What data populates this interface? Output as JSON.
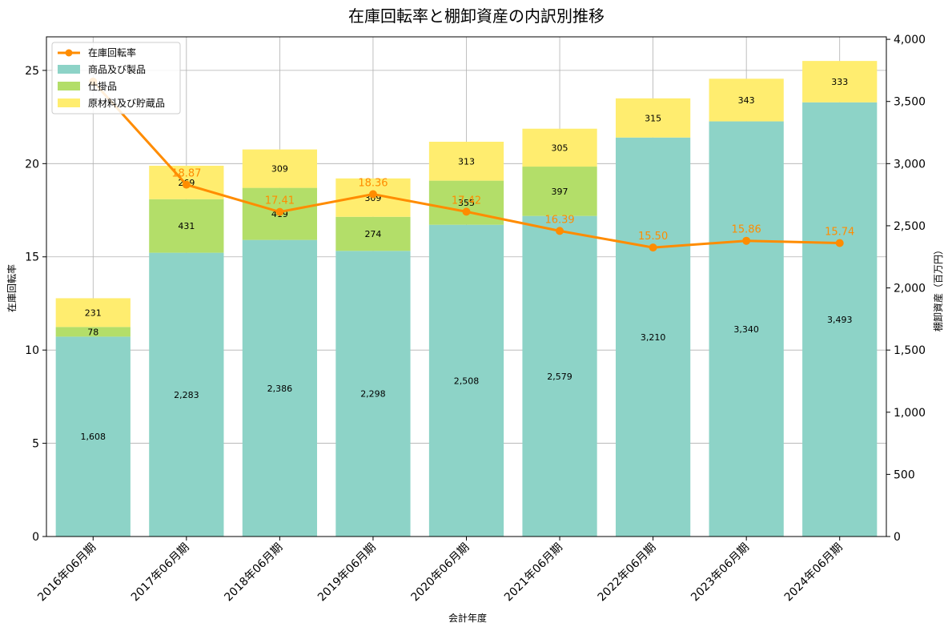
{
  "chart_data": {
    "type": "bar",
    "title": "在庫回転率と棚卸資産の内訳別推移",
    "xlabel": "会計年度",
    "ylabel_left": "在庫回転率",
    "ylabel_right": "棚卸資産（百万円）",
    "categories": [
      "2016年06月期",
      "2017年06月期",
      "2018年06月期",
      "2019年06月期",
      "2020年06月期",
      "2021年06月期",
      "2022年06月期",
      "2023年06月期",
      "2024年06月期"
    ],
    "stacked": true,
    "series": [
      {
        "name": "商品及び製品",
        "axis": "right",
        "color": "#8dd3c7",
        "values": [
          1608,
          2283,
          2386,
          2298,
          2508,
          2579,
          3210,
          3340,
          3493
        ],
        "labels": [
          "1,608",
          "2,283",
          "2,386",
          "2,298",
          "2,508",
          "2,579",
          "3,210",
          "3,340",
          "3,493"
        ]
      },
      {
        "name": "仕掛品",
        "axis": "right",
        "color": "#b3de69",
        "values": [
          78,
          431,
          419,
          274,
          355,
          397,
          0,
          0,
          0
        ],
        "labels": [
          "78",
          "431",
          "419",
          "274",
          "355",
          "397",
          "",
          "",
          ""
        ]
      },
      {
        "name": "原材料及び貯蔵品",
        "axis": "right",
        "color": "#ffed6f",
        "values": [
          231,
          269,
          309,
          309,
          313,
          305,
          315,
          343,
          333
        ],
        "labels": [
          "231",
          "269",
          "309",
          "309",
          "313",
          "305",
          "315",
          "343",
          "333"
        ]
      }
    ],
    "line": {
      "name": "在庫回転率",
      "axis": "left",
      "color": "#ff8c00",
      "values": [
        24.4,
        18.87,
        17.41,
        18.36,
        17.42,
        16.39,
        15.5,
        15.86,
        15.74
      ],
      "labels": [
        "",
        "18.87",
        "17.41",
        "18.36",
        "17.42",
        "16.39",
        "15.50",
        "15.86",
        "15.74"
      ]
    },
    "ylim_left": [
      0,
      26.8
    ],
    "ylim_right": [
      0,
      4020
    ],
    "yticks_left": [
      {
        "v": 0,
        "label": "0"
      },
      {
        "v": 5,
        "label": "5"
      },
      {
        "v": 10,
        "label": "10"
      },
      {
        "v": 15,
        "label": "15"
      },
      {
        "v": 20,
        "label": "20"
      },
      {
        "v": 25,
        "label": "25"
      }
    ],
    "yticks_right": [
      {
        "v": 0,
        "label": "0"
      },
      {
        "v": 500,
        "label": "500"
      },
      {
        "v": 1000,
        "label": "1,000"
      },
      {
        "v": 1500,
        "label": "1,500"
      },
      {
        "v": 2000,
        "label": "2,000"
      },
      {
        "v": 2500,
        "label": "2,500"
      },
      {
        "v": 3000,
        "label": "3,000"
      },
      {
        "v": 3500,
        "label": "3,500"
      },
      {
        "v": 4000,
        "label": "4,000"
      }
    ],
    "grid": true,
    "legend_position": "top-left"
  }
}
